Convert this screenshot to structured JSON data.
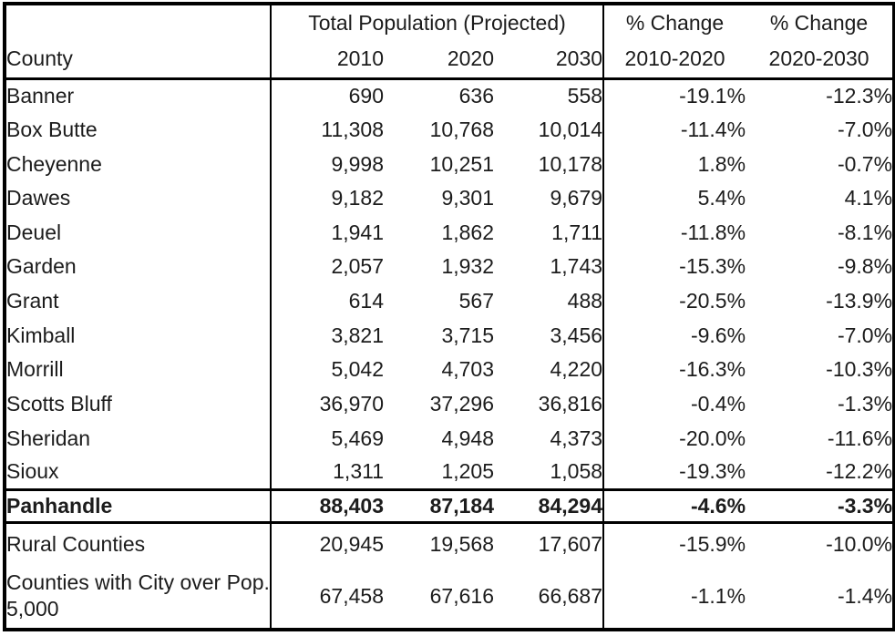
{
  "header": {
    "county": "County",
    "group": "Total Population (Projected)",
    "years": [
      "2010",
      "2020",
      "2030"
    ],
    "pct1_line1": "% Change",
    "pct1_line2": "2010-2020",
    "pct2_line1": "% Change",
    "pct2_line2": "2020-2030"
  },
  "rows": [
    {
      "county": "Banner",
      "pop2010": "690",
      "pop2020": "636",
      "pop2030": "558",
      "change_2010_2020": "-19.1%",
      "change_2020_2030": "-12.3%"
    },
    {
      "county": "Box Butte",
      "pop2010": "11,308",
      "pop2020": "10,768",
      "pop2030": "10,014",
      "change_2010_2020": "-11.4%",
      "change_2020_2030": "-7.0%"
    },
    {
      "county": "Cheyenne",
      "pop2010": "9,998",
      "pop2020": "10,251",
      "pop2030": "10,178",
      "change_2010_2020": "1.8%",
      "change_2020_2030": "-0.7%"
    },
    {
      "county": "Dawes",
      "pop2010": "9,182",
      "pop2020": "9,301",
      "pop2030": "9,679",
      "change_2010_2020": "5.4%",
      "change_2020_2030": "4.1%"
    },
    {
      "county": "Deuel",
      "pop2010": "1,941",
      "pop2020": "1,862",
      "pop2030": "1,711",
      "change_2010_2020": "-11.8%",
      "change_2020_2030": "-8.1%"
    },
    {
      "county": "Garden",
      "pop2010": "2,057",
      "pop2020": "1,932",
      "pop2030": "1,743",
      "change_2010_2020": "-15.3%",
      "change_2020_2030": "-9.8%"
    },
    {
      "county": "Grant",
      "pop2010": "614",
      "pop2020": "567",
      "pop2030": "488",
      "change_2010_2020": "-20.5%",
      "change_2020_2030": "-13.9%"
    },
    {
      "county": "Kimball",
      "pop2010": "3,821",
      "pop2020": "3,715",
      "pop2030": "3,456",
      "change_2010_2020": "-9.6%",
      "change_2020_2030": "-7.0%"
    },
    {
      "county": "Morrill",
      "pop2010": "5,042",
      "pop2020": "4,703",
      "pop2030": "4,220",
      "change_2010_2020": "-16.3%",
      "change_2020_2030": "-10.3%"
    },
    {
      "county": "Scotts Bluff",
      "pop2010": "36,970",
      "pop2020": "37,296",
      "pop2030": "36,816",
      "change_2010_2020": "-0.4%",
      "change_2020_2030": "-1.3%"
    },
    {
      "county": "Sheridan",
      "pop2010": "5,469",
      "pop2020": "4,948",
      "pop2030": "4,373",
      "change_2010_2020": "-20.0%",
      "change_2020_2030": "-11.6%"
    },
    {
      "county": "Sioux",
      "pop2010": "1,311",
      "pop2020": "1,205",
      "pop2030": "1,058",
      "change_2010_2020": "-19.3%",
      "change_2020_2030": "-12.2%"
    }
  ],
  "summary": {
    "county": "Panhandle",
    "pop2010": "88,403",
    "pop2020": "87,184",
    "pop2030": "84,294",
    "change_2010_2020": "-4.6%",
    "change_2020_2030": "-3.3%"
  },
  "footer": [
    {
      "county": "Rural Counties",
      "pop2010": "20,945",
      "pop2020": "19,568",
      "pop2030": "17,607",
      "change_2010_2020": "-15.9%",
      "change_2020_2030": "-10.0%"
    },
    {
      "county": "Counties with City over Pop. 5,000",
      "pop2010": "67,458",
      "pop2020": "67,616",
      "pop2030": "66,687",
      "change_2010_2020": "-1.1%",
      "change_2020_2030": "-1.4%"
    }
  ],
  "colors": {
    "border": "#000000",
    "text": "#1c1c1c",
    "background": "#ffffff"
  },
  "chart_data": {
    "type": "table",
    "columns": [
      "County",
      "Total Population (Projected) 2010",
      "Total Population (Projected) 2020",
      "Total Population (Projected) 2030",
      "% Change 2010-2020",
      "% Change 2020-2030"
    ],
    "rows": [
      [
        "Banner",
        690,
        636,
        558,
        -19.1,
        -12.3
      ],
      [
        "Box Butte",
        11308,
        10768,
        10014,
        -11.4,
        -7.0
      ],
      [
        "Cheyenne",
        9998,
        10251,
        10178,
        1.8,
        -0.7
      ],
      [
        "Dawes",
        9182,
        9301,
        9679,
        5.4,
        4.1
      ],
      [
        "Deuel",
        1941,
        1862,
        1711,
        -11.8,
        -8.1
      ],
      [
        "Garden",
        2057,
        1932,
        1743,
        -15.3,
        -9.8
      ],
      [
        "Grant",
        614,
        567,
        488,
        -20.5,
        -13.9
      ],
      [
        "Kimball",
        3821,
        3715,
        3456,
        -9.6,
        -7.0
      ],
      [
        "Morrill",
        5042,
        4703,
        4220,
        -16.3,
        -10.3
      ],
      [
        "Scotts Bluff",
        36970,
        37296,
        36816,
        -0.4,
        -1.3
      ],
      [
        "Sheridan",
        5469,
        4948,
        4373,
        -20.0,
        -11.6
      ],
      [
        "Sioux",
        1311,
        1205,
        1058,
        -19.3,
        -12.2
      ],
      [
        "Panhandle",
        88403,
        87184,
        84294,
        -4.6,
        -3.3
      ],
      [
        "Rural Counties",
        20945,
        19568,
        17607,
        -15.9,
        -10.0
      ],
      [
        "Counties with City over Pop. 5,000",
        67458,
        67616,
        66687,
        -1.1,
        -1.4
      ]
    ]
  }
}
